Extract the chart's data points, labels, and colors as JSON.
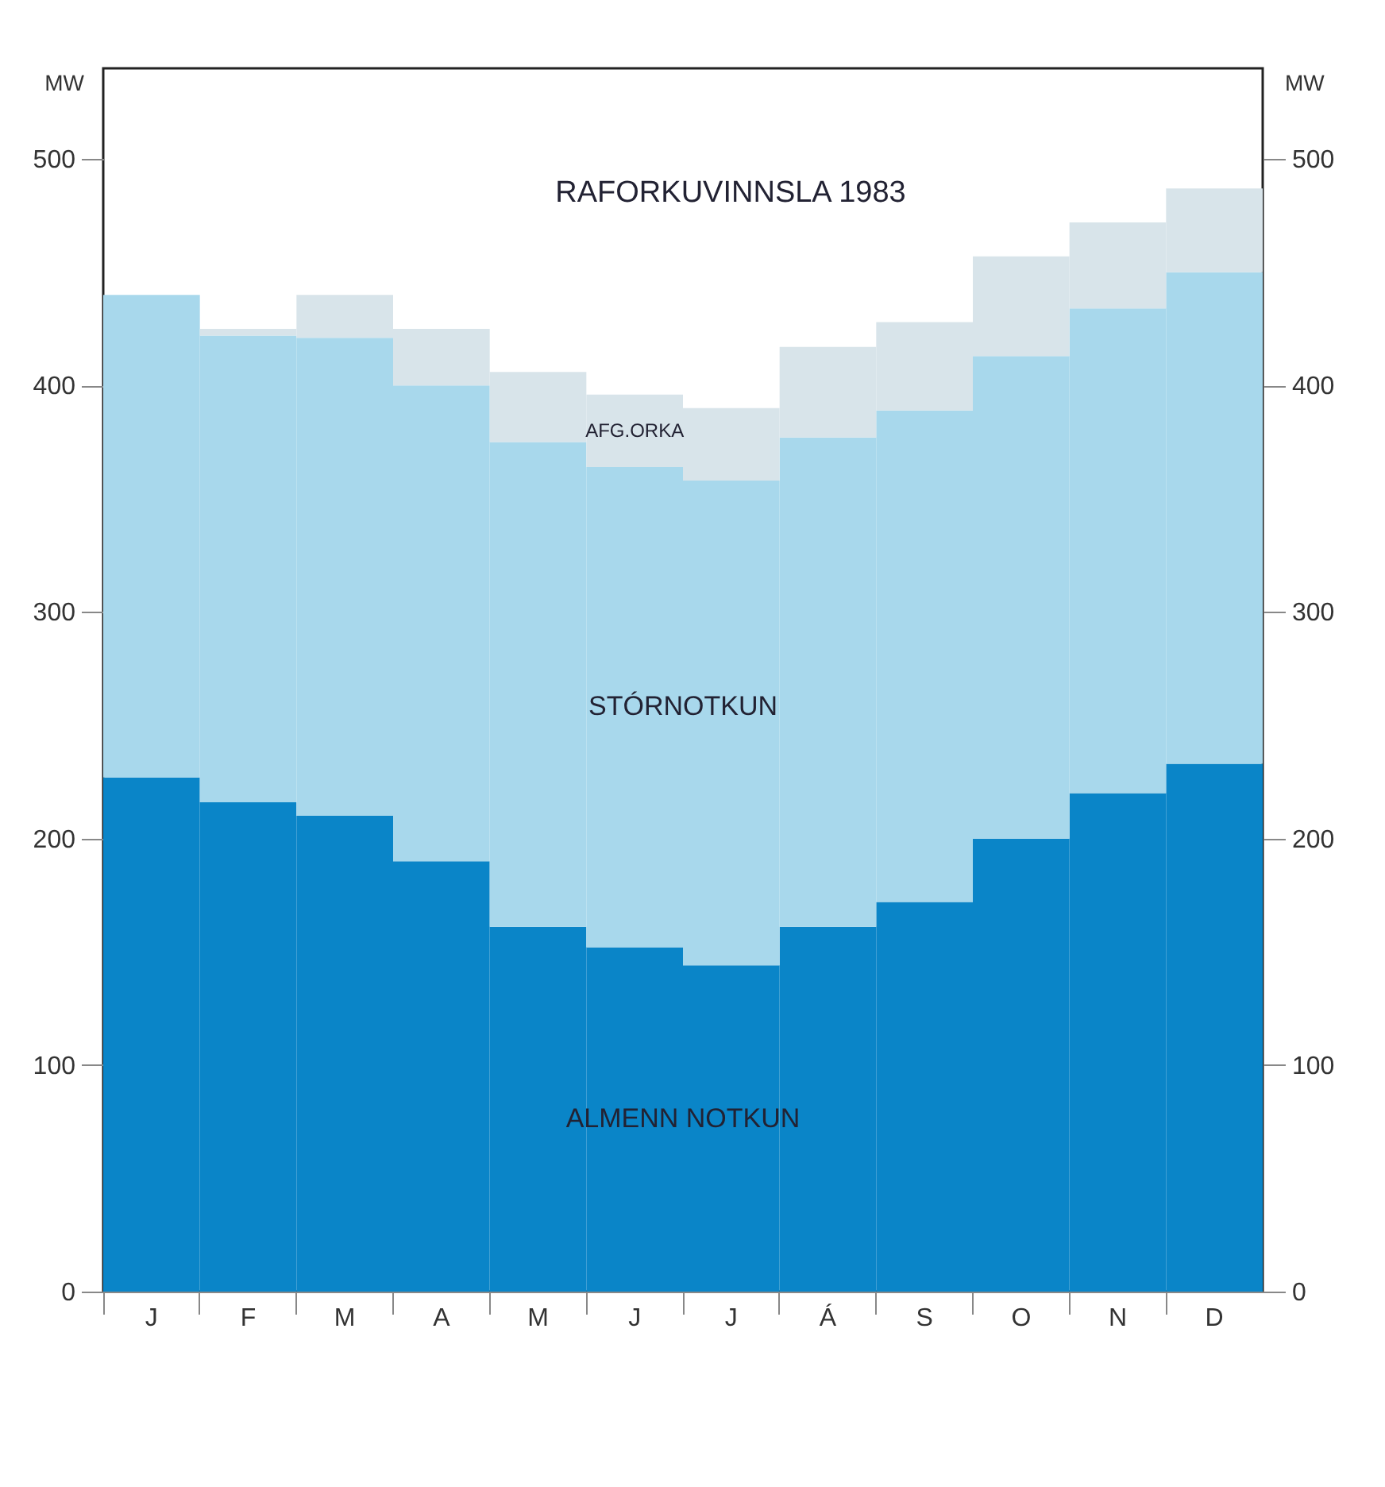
{
  "chart_data": {
    "type": "bar",
    "stacked": true,
    "title": "RAFORKUVINNSLA 1983",
    "ylabel": "MW",
    "y2label": "MW",
    "categories": [
      "J",
      "F",
      "M",
      "A",
      "M",
      "J",
      "J",
      "Á",
      "S",
      "O",
      "N",
      "D"
    ],
    "series": [
      {
        "name": "ALMENN NOTKUN",
        "color": "#0a85c8",
        "values": [
          227,
          216,
          210,
          190,
          161,
          152,
          144,
          161,
          172,
          200,
          220,
          233
        ]
      },
      {
        "name": "STÓRNOTKUN",
        "color": "#a8d8ec",
        "values": [
          213,
          206,
          211,
          210,
          214,
          212,
          214,
          216,
          217,
          213,
          214,
          217
        ]
      },
      {
        "name": "AFG.ORKA",
        "color": "#d8e4ea",
        "values": [
          0,
          3,
          19,
          25,
          31,
          32,
          32,
          40,
          39,
          44,
          38,
          37
        ]
      }
    ],
    "ylim": [
      0,
      540
    ],
    "yticks": [
      0,
      100,
      200,
      300,
      400,
      500
    ],
    "y2lim": [
      0,
      540
    ],
    "y2ticks": [
      0,
      100,
      200,
      300,
      400,
      500
    ],
    "legend": false,
    "grid": false
  }
}
